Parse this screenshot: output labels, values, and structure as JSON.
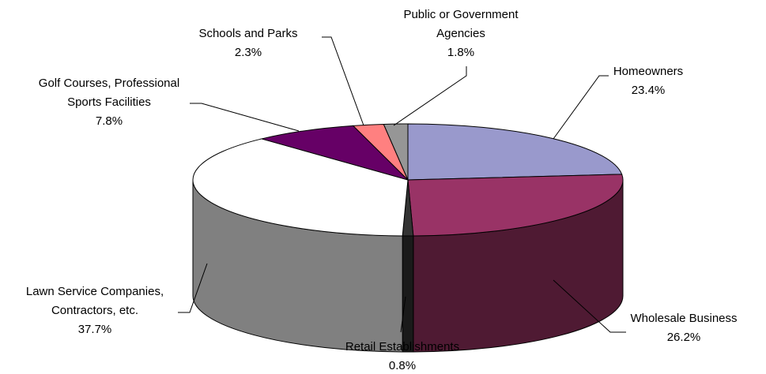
{
  "chart_data": {
    "type": "pie",
    "style": "3d",
    "title": "",
    "series": [
      {
        "slices": [
          {
            "label_lines": [
              "Homeowners"
            ],
            "value": 23.4,
            "value_label": "23.4%",
            "color": "#9999cc",
            "side_color": "#6b6b93"
          },
          {
            "label_lines": [
              "Wholesale Business"
            ],
            "value": 26.2,
            "value_label": "26.2%",
            "color": "#993366",
            "side_color": "#4f1a33"
          },
          {
            "label_lines": [
              "Retail Establishments"
            ],
            "value": 0.8,
            "value_label": "0.8%",
            "color": "#333333",
            "side_color": "#1a1a1a"
          },
          {
            "label_lines": [
              "Lawn Service Companies,",
              "Contractors, etc."
            ],
            "value": 37.7,
            "value_label": "37.7%",
            "color": "#ffffff",
            "side_color": "#808080"
          },
          {
            "label_lines": [
              "Golf Courses, Professional",
              "Sports Facilities"
            ],
            "value": 7.8,
            "value_label": "7.8%",
            "color": "#660066",
            "side_color": "#330033"
          },
          {
            "label_lines": [
              "Schools and Parks"
            ],
            "value": 2.3,
            "value_label": "2.3%",
            "color": "#ff8080",
            "side_color": "#b35a5a"
          },
          {
            "label_lines": [
              "Public or Government",
              "Agencies"
            ],
            "value": 1.8,
            "value_label": "1.8%",
            "color": "#969696",
            "side_color": "#606060"
          }
        ]
      }
    ],
    "start_angle_deg": -90,
    "direction": "clockwise",
    "legend": "none",
    "labels": "outside-with-leader-lines"
  }
}
